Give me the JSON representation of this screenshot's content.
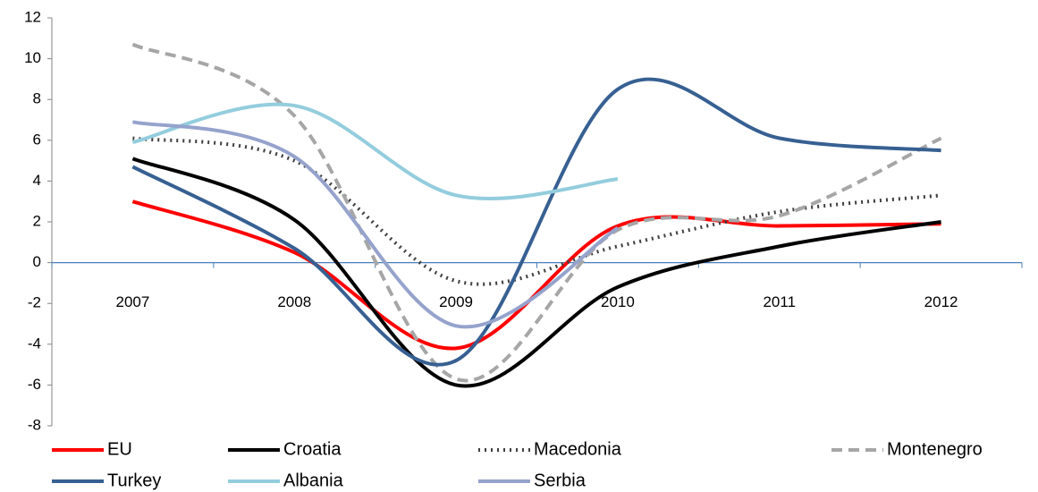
{
  "chart_data": {
    "type": "line",
    "categories": [
      "2007",
      "2008",
      "2009",
      "2010",
      "2011",
      "2012"
    ],
    "series": [
      {
        "name": "EU",
        "color": "#ff0000",
        "dash": "solid",
        "values": [
          3.0,
          0.5,
          -4.2,
          1.8,
          1.8,
          1.9
        ]
      },
      {
        "name": "Croatia",
        "color": "#000000",
        "dash": "solid",
        "values": [
          5.1,
          2.1,
          -6.0,
          -1.2,
          0.8,
          2.0
        ]
      },
      {
        "name": "Macedonia",
        "color": "#404040",
        "dash": "dotted",
        "values": [
          6.1,
          5.0,
          -0.9,
          0.8,
          2.5,
          3.3
        ]
      },
      {
        "name": "Montenegro",
        "color": "#a6a6a6",
        "dash": "dashed",
        "values": [
          10.7,
          7.2,
          -5.7,
          1.6,
          2.3,
          6.1
        ]
      },
      {
        "name": "Turkey",
        "color": "#376092",
        "dash": "solid",
        "values": [
          4.7,
          0.7,
          -4.8,
          8.5,
          6.1,
          5.5
        ]
      },
      {
        "name": "Albania",
        "color": "#93cddd",
        "dash": "solid",
        "values": [
          5.9,
          7.7,
          3.3,
          4.1,
          null,
          null
        ]
      },
      {
        "name": "Serbia",
        "color": "#95a3cc",
        "dash": "solid",
        "values": [
          6.9,
          5.2,
          -3.1,
          1.7,
          null,
          null
        ]
      }
    ],
    "ylim": [
      -8,
      12
    ],
    "yticks": [
      -8,
      -6,
      -4,
      -2,
      0,
      2,
      4,
      6,
      8,
      10,
      12
    ],
    "legend": "bottom"
  }
}
